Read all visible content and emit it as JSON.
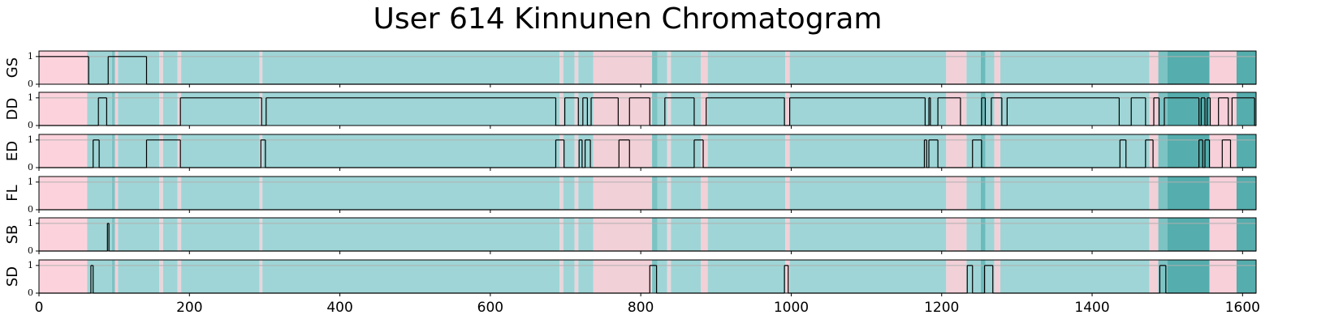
{
  "chart_data": {
    "type": "step",
    "title": "User 614 Kinnunen Chromatogram",
    "xlim": [
      0,
      1618
    ],
    "xticks": [
      0,
      200,
      400,
      600,
      800,
      1000,
      1200,
      1400,
      1600
    ],
    "ylim": [
      0,
      1.2
    ],
    "yticks": [
      0,
      1
    ],
    "grid": true,
    "line_color": "#000000",
    "bands": [
      {
        "start": 0,
        "end": 64,
        "color": "#fcd3dd"
      },
      {
        "start": 64,
        "end": 97,
        "color": "#9fd5d6"
      },
      {
        "start": 97,
        "end": 101,
        "color": "#7cc3c4"
      },
      {
        "start": 101,
        "end": 105,
        "color": "#f2d0d8"
      },
      {
        "start": 105,
        "end": 160,
        "color": "#9fd5d6"
      },
      {
        "start": 160,
        "end": 165,
        "color": "#e8d6dc"
      },
      {
        "start": 165,
        "end": 184,
        "color": "#9fd5d6"
      },
      {
        "start": 184,
        "end": 189,
        "color": "#e8d6dc"
      },
      {
        "start": 189,
        "end": 293,
        "color": "#9fd5d6"
      },
      {
        "start": 293,
        "end": 297,
        "color": "#e8d6dc"
      },
      {
        "start": 297,
        "end": 692,
        "color": "#9fd5d6"
      },
      {
        "start": 692,
        "end": 697,
        "color": "#e8d6dc"
      },
      {
        "start": 697,
        "end": 712,
        "color": "#9fd5d6"
      },
      {
        "start": 712,
        "end": 717,
        "color": "#e8d6dc"
      },
      {
        "start": 717,
        "end": 737,
        "color": "#9fd5d6"
      },
      {
        "start": 737,
        "end": 815,
        "color": "#f2d0d8"
      },
      {
        "start": 815,
        "end": 822,
        "color": "#7cc3c4"
      },
      {
        "start": 822,
        "end": 835,
        "color": "#9fd5d6"
      },
      {
        "start": 835,
        "end": 840,
        "color": "#e8d6dc"
      },
      {
        "start": 840,
        "end": 880,
        "color": "#9fd5d6"
      },
      {
        "start": 880,
        "end": 889,
        "color": "#f2d0d8"
      },
      {
        "start": 889,
        "end": 992,
        "color": "#9fd5d6"
      },
      {
        "start": 992,
        "end": 998,
        "color": "#f2d0d8"
      },
      {
        "start": 998,
        "end": 1206,
        "color": "#9fd5d6"
      },
      {
        "start": 1206,
        "end": 1233,
        "color": "#f2d0d8"
      },
      {
        "start": 1233,
        "end": 1252,
        "color": "#9fd5d6"
      },
      {
        "start": 1252,
        "end": 1258,
        "color": "#6bbbbc"
      },
      {
        "start": 1258,
        "end": 1270,
        "color": "#9fd5d6"
      },
      {
        "start": 1270,
        "end": 1278,
        "color": "#f2d0d8"
      },
      {
        "start": 1278,
        "end": 1476,
        "color": "#9fd5d6"
      },
      {
        "start": 1476,
        "end": 1488,
        "color": "#f2d0d8"
      },
      {
        "start": 1488,
        "end": 1500,
        "color": "#7cc3c4"
      },
      {
        "start": 1500,
        "end": 1556,
        "color": "#55adad"
      },
      {
        "start": 1556,
        "end": 1592,
        "color": "#f7d0da"
      },
      {
        "start": 1592,
        "end": 1618,
        "color": "#55adad"
      }
    ],
    "series": [
      {
        "name": "GS",
        "x": [
          0,
          66,
          92,
          143
        ],
        "values": [
          1,
          0,
          1,
          0
        ]
      },
      {
        "name": "DD",
        "x": [
          0,
          79,
          90,
          188,
          296,
          302,
          687,
          699,
          717,
          723,
          729,
          734,
          770,
          785,
          812,
          832,
          871,
          887,
          991,
          998,
          1178,
          1183,
          1185,
          1195,
          1225,
          1253,
          1258,
          1266,
          1280,
          1287,
          1436,
          1452,
          1471,
          1482,
          1489,
          1496,
          1542,
          1545,
          1550,
          1553,
          1557,
          1568,
          1581,
          1586,
          1616
        ],
        "values": [
          0,
          1,
          0,
          1,
          0,
          1,
          0,
          1,
          0,
          1,
          0,
          1,
          0,
          1,
          0,
          1,
          0,
          1,
          0,
          1,
          0,
          1,
          0,
          1,
          0,
          1,
          0,
          1,
          0,
          1,
          0,
          1,
          0,
          1,
          0,
          1,
          0,
          1,
          0,
          1,
          0,
          1,
          0,
          1,
          0
        ]
      },
      {
        "name": "ED",
        "x": [
          0,
          72,
          80,
          143,
          188,
          295,
          301,
          687,
          698,
          718,
          722,
          726,
          733,
          771,
          785,
          871,
          883,
          1177,
          1180,
          1183,
          1195,
          1241,
          1253,
          1437,
          1445,
          1471,
          1481,
          1542,
          1547,
          1550,
          1556,
          1573,
          1584
        ],
        "values": [
          0,
          1,
          0,
          1,
          0,
          1,
          0,
          1,
          0,
          1,
          0,
          1,
          0,
          1,
          0,
          1,
          0,
          1,
          0,
          1,
          0,
          1,
          0,
          1,
          0,
          1,
          0,
          1,
          0,
          1,
          0,
          1,
          0
        ]
      },
      {
        "name": "FL",
        "x": [
          0
        ],
        "values": [
          0
        ]
      },
      {
        "name": "SB",
        "x": [
          0,
          91,
          93
        ],
        "values": [
          0,
          1,
          0
        ]
      },
      {
        "name": "SD",
        "x": [
          0,
          69,
          72,
          812,
          821,
          991,
          996,
          1234,
          1241,
          1257,
          1268,
          1490,
          1498
        ],
        "values": [
          0,
          1,
          0,
          1,
          0,
          1,
          0,
          1,
          0,
          1,
          0,
          1,
          0
        ]
      }
    ]
  }
}
